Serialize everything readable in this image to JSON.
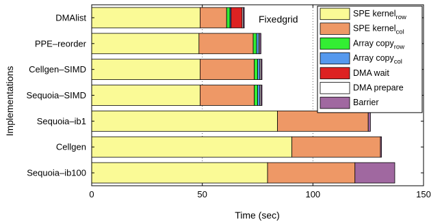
{
  "chart_data": {
    "type": "bar",
    "orientation": "horizontal",
    "stacked": true,
    "title": "",
    "annotation": "Fixedgrid",
    "xlabel": "Time (sec)",
    "ylabel": "Implementations",
    "xlim": [
      0,
      150
    ],
    "xticks": [
      "0",
      "50",
      "100",
      "150"
    ],
    "reference_lines_x": [
      50,
      100
    ],
    "legend_placement": "top-right",
    "categories": [
      "DMAlist",
      "PPE–reorder",
      "Cellgen–SIMD",
      "Sequoia–SIMD",
      "Sequoia–ib1",
      "Cellgen",
      "Sequoia–ib100"
    ],
    "series": [
      {
        "name": "SPE kernel",
        "sub": "row",
        "color": "#fafa96",
        "values": [
          49,
          48.5,
          49,
          49,
          84,
          90.5,
          79.5
        ]
      },
      {
        "name": "SPE kernel",
        "sub": "col",
        "color": "#ee9866",
        "values": [
          12,
          24.5,
          24.5,
          24.5,
          41,
          40,
          39.5
        ]
      },
      {
        "name": "Array copy",
        "sub": "row",
        "color": "#33ee33",
        "values": [
          1.5,
          1.5,
          1.5,
          1.5,
          0,
          0,
          0
        ]
      },
      {
        "name": "Array copy",
        "sub": "col",
        "color": "#5599ee",
        "values": [
          0.5,
          1,
          1,
          1,
          0,
          0,
          0
        ]
      },
      {
        "name": "DMA wait",
        "sub": "",
        "color": "#dd2222",
        "values": [
          5,
          0,
          0,
          0,
          0,
          0,
          0
        ]
      },
      {
        "name": "DMA prepare",
        "sub": "",
        "color": "#ffffff",
        "values": [
          0.5,
          0.5,
          0.5,
          0.5,
          0,
          0,
          0
        ]
      },
      {
        "name": "Barrier",
        "sub": "",
        "color": "#a068a0",
        "values": [
          0.5,
          0.5,
          0.5,
          0.5,
          1,
          0.5,
          18
        ]
      }
    ]
  }
}
